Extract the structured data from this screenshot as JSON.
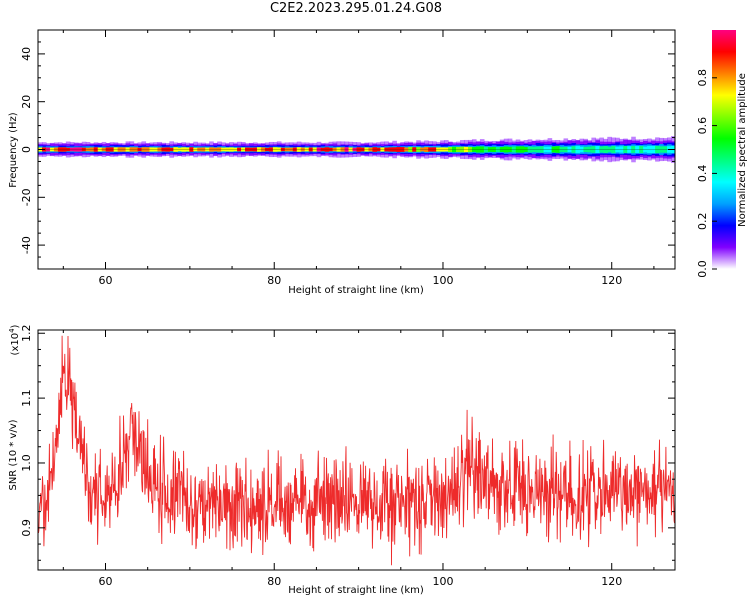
{
  "title": "C2E2.2023.295.01.24.G08",
  "colors": {
    "snr_line": "#ee2b2b",
    "axes": "#000000",
    "background": "#ffffff"
  },
  "chart_data": [
    {
      "type": "heatmap",
      "name": "spectrogram",
      "xlabel": "Height of straight line (km)",
      "ylabel": "Frequency (Hz)",
      "xlim": [
        52,
        127.5
      ],
      "ylim": [
        -50,
        50
      ],
      "xticks": [
        60,
        80,
        100,
        120
      ],
      "yticks": [
        -40,
        -20,
        0,
        20,
        40
      ],
      "description_of_values": "Normalized spectral amplitude concentrated near 0 Hz across the full height range; narrow band (about ±3 Hz) with peak near 1.0 at 0 Hz",
      "band": [
        {
          "x": 52,
          "half_width_hz": 3,
          "peak": 0.95
        },
        {
          "x": 60,
          "half_width_hz": 3,
          "peak": 0.95
        },
        {
          "x": 70,
          "half_width_hz": 3,
          "peak": 0.9
        },
        {
          "x": 80,
          "half_width_hz": 3,
          "peak": 0.9
        },
        {
          "x": 90,
          "half_width_hz": 3,
          "peak": 0.95
        },
        {
          "x": 100,
          "half_width_hz": 3.5,
          "peak": 0.85
        },
        {
          "x": 105,
          "half_width_hz": 4,
          "peak": 0.55
        },
        {
          "x": 115,
          "half_width_hz": 4.5,
          "peak": 0.5
        },
        {
          "x": 127.5,
          "half_width_hz": 5,
          "peak": 0.45
        }
      ],
      "colorbar": {
        "label": "Normalized spectral amplitude",
        "range": [
          0.0,
          1.0
        ],
        "ticks": [
          "0.0",
          "0.2",
          "0.4",
          "0.6",
          "0.8"
        ],
        "tick_values": [
          0.0,
          0.2,
          0.4,
          0.6,
          0.8
        ],
        "colors": [
          "#ffffff",
          "#8000ff",
          "#0000ff",
          "#00a0ff",
          "#00ffff",
          "#00ff80",
          "#00ff00",
          "#80ff00",
          "#ffff00",
          "#ff8000",
          "#ff0000",
          "#ff0080"
        ]
      }
    },
    {
      "type": "line",
      "name": "snr",
      "xlabel": "Height of straight line (km)",
      "ylabel": "SNR (10 * v/v)",
      "multiplier_label": "(x10",
      "multiplier_exp": "4",
      "multiplier_close": ")",
      "xlim": [
        52,
        127.5
      ],
      "ylim": [
        0.835,
        1.205
      ],
      "xticks": [
        60,
        80,
        100,
        120
      ],
      "yticks": [
        0.9,
        1.0,
        1.1,
        1.2
      ],
      "ytick_labels": [
        "0.9",
        "1.0",
        "1.1",
        "1.2"
      ],
      "series_envelope": [
        {
          "x": 52,
          "y": 0.95
        },
        {
          "x": 53,
          "y": 0.93
        },
        {
          "x": 54,
          "y": 1.02
        },
        {
          "x": 55,
          "y": 1.13
        },
        {
          "x": 56,
          "y": 1.12
        },
        {
          "x": 57,
          "y": 1.02
        },
        {
          "x": 58,
          "y": 0.96
        },
        {
          "x": 60,
          "y": 0.94
        },
        {
          "x": 62,
          "y": 0.98
        },
        {
          "x": 63,
          "y": 1.06
        },
        {
          "x": 64,
          "y": 1.03
        },
        {
          "x": 66,
          "y": 0.96
        },
        {
          "x": 70,
          "y": 0.94
        },
        {
          "x": 75,
          "y": 0.93
        },
        {
          "x": 80,
          "y": 0.935
        },
        {
          "x": 85,
          "y": 0.94
        },
        {
          "x": 90,
          "y": 0.94
        },
        {
          "x": 95,
          "y": 0.935
        },
        {
          "x": 100,
          "y": 0.94
        },
        {
          "x": 103,
          "y": 0.99
        },
        {
          "x": 106,
          "y": 0.97
        },
        {
          "x": 110,
          "y": 0.96
        },
        {
          "x": 115,
          "y": 0.955
        },
        {
          "x": 120,
          "y": 0.955
        },
        {
          "x": 125,
          "y": 0.955
        },
        {
          "x": 127.5,
          "y": 0.96
        }
      ],
      "noise_amplitude": 0.035
    }
  ]
}
